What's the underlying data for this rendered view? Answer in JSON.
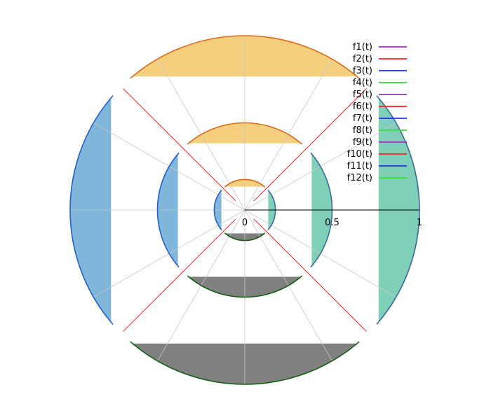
{
  "chart_data": {
    "type": "polar-parametric",
    "title": "",
    "radial_axis": {
      "range": [
        0,
        1
      ],
      "ticks": [
        {
          "value": 0,
          "label": "0"
        },
        {
          "value": 0.5,
          "label": "0.5"
        },
        {
          "value": 1,
          "label": "1"
        }
      ]
    },
    "angular_grid_step_deg": 30,
    "grid": true,
    "legend": {
      "placement": "top-right"
    },
    "rings": [
      0.175,
      0.5,
      1.0
    ],
    "fill_colors": {
      "top": "#f3cf7e",
      "right": "#80cfb8",
      "bottom": "#808080",
      "left": "#80b6d9"
    },
    "series": [
      {
        "name": "f1(t)",
        "color": "#9b30c8"
      },
      {
        "name": "f2(t)",
        "color": "#ff2020"
      },
      {
        "name": "f3(t)",
        "color": "#2030e0"
      },
      {
        "name": "f4(t)",
        "color": "#30e030"
      },
      {
        "name": "f5(t)",
        "color": "#9b30c8"
      },
      {
        "name": "f6(t)",
        "color": "#ff2020"
      },
      {
        "name": "f7(t)",
        "color": "#2030e0"
      },
      {
        "name": "f8(t)",
        "color": "#30e030"
      },
      {
        "name": "f9(t)",
        "color": "#9b30c8"
      },
      {
        "name": "f10(t)",
        "color": "#ff2020"
      },
      {
        "name": "f11(t)",
        "color": "#2030e0"
      },
      {
        "name": "f12(t)",
        "color": "#30e030"
      }
    ]
  }
}
